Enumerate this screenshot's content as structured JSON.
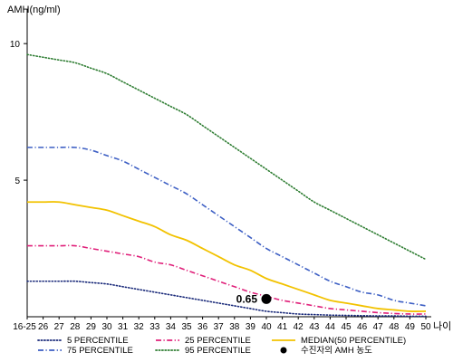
{
  "chart_data": {
    "type": "line",
    "ylabel": "AMH(ng/ml)",
    "xlabel": "나이",
    "ylim": [
      0,
      11
    ],
    "y_ticks": [
      5,
      10
    ],
    "x_ticks": [
      "16-25",
      "26",
      "27",
      "28",
      "29",
      "30",
      "31",
      "32",
      "33",
      "34",
      "35",
      "36",
      "37",
      "38",
      "39",
      "40",
      "41",
      "42",
      "43",
      "44",
      "45",
      "46",
      "47",
      "48",
      "49",
      "50"
    ],
    "grid": false,
    "legend_position": "bottom",
    "series": [
      {
        "name": "95 PERCENTILE",
        "color": "#2e7d32",
        "dash": "dotted",
        "x": [
          25,
          26,
          27,
          28,
          29,
          30,
          31,
          32,
          33,
          34,
          35,
          36,
          37,
          38,
          39,
          40,
          41,
          42,
          43,
          44,
          45,
          46,
          47,
          48,
          49,
          50
        ],
        "values": [
          9.6,
          9.5,
          9.4,
          9.3,
          9.1,
          8.9,
          8.6,
          8.3,
          8.0,
          7.7,
          7.4,
          7.0,
          6.6,
          6.2,
          5.8,
          5.4,
          5.0,
          4.6,
          4.2,
          3.9,
          3.6,
          3.3,
          3.0,
          2.7,
          2.4,
          2.1
        ]
      },
      {
        "name": "75 PERCENTILE",
        "color": "#3d5fc4",
        "dash": "dashdot",
        "x": [
          25,
          26,
          27,
          28,
          29,
          30,
          31,
          32,
          33,
          34,
          35,
          36,
          37,
          38,
          39,
          40,
          41,
          42,
          43,
          44,
          45,
          46,
          47,
          48,
          49,
          50
        ],
        "values": [
          6.2,
          6.2,
          6.2,
          6.2,
          6.1,
          5.9,
          5.7,
          5.4,
          5.1,
          4.8,
          4.5,
          4.1,
          3.7,
          3.3,
          2.9,
          2.5,
          2.2,
          1.9,
          1.6,
          1.3,
          1.1,
          0.9,
          0.8,
          0.6,
          0.5,
          0.4
        ]
      },
      {
        "name": "MEDIAN(50 PERCENTILE)",
        "color": "#f2c200",
        "dash": "solid",
        "x": [
          25,
          26,
          27,
          28,
          29,
          30,
          31,
          32,
          33,
          34,
          35,
          36,
          37,
          38,
          39,
          40,
          41,
          42,
          43,
          44,
          45,
          46,
          47,
          48,
          49,
          50
        ],
        "values": [
          4.2,
          4.2,
          4.2,
          4.1,
          4.0,
          3.9,
          3.7,
          3.5,
          3.3,
          3.0,
          2.8,
          2.5,
          2.2,
          1.9,
          1.7,
          1.4,
          1.2,
          1.0,
          0.8,
          0.6,
          0.5,
          0.4,
          0.3,
          0.25,
          0.2,
          0.2
        ]
      },
      {
        "name": "25 PERCENTILE",
        "color": "#e0207a",
        "dash": "dashdot",
        "x": [
          25,
          26,
          27,
          28,
          29,
          30,
          31,
          32,
          33,
          34,
          35,
          36,
          37,
          38,
          39,
          40,
          41,
          42,
          43,
          44,
          45,
          46,
          47,
          48,
          49,
          50
        ],
        "values": [
          2.6,
          2.6,
          2.6,
          2.6,
          2.5,
          2.4,
          2.3,
          2.2,
          2.0,
          1.9,
          1.7,
          1.5,
          1.3,
          1.1,
          0.9,
          0.75,
          0.6,
          0.5,
          0.4,
          0.3,
          0.25,
          0.2,
          0.15,
          0.12,
          0.1,
          0.1
        ]
      },
      {
        "name": "5 PERCENTILE",
        "color": "#1a2a7a",
        "dash": "dotted",
        "x": [
          25,
          26,
          27,
          28,
          29,
          30,
          31,
          32,
          33,
          34,
          35,
          36,
          37,
          38,
          39,
          40,
          41,
          42,
          43,
          44,
          45,
          46,
          47,
          48,
          49,
          50
        ],
        "values": [
          1.3,
          1.3,
          1.3,
          1.3,
          1.25,
          1.2,
          1.1,
          1.0,
          0.9,
          0.8,
          0.7,
          0.6,
          0.5,
          0.4,
          0.3,
          0.2,
          0.15,
          0.1,
          0.08,
          0.06,
          0.05,
          0.04,
          0.03,
          0.03,
          0.02,
          0.02
        ]
      }
    ],
    "point": {
      "label": "수진자의 AMH 농도",
      "x": 40,
      "y": 0.65,
      "value_label": "0.65"
    },
    "legend": [
      {
        "name": "5 PERCENTILE",
        "color": "#1a2a7a",
        "dash": "dotted"
      },
      {
        "name": "25 PERCENTILE",
        "color": "#e0207a",
        "dash": "dashdot"
      },
      {
        "name": "MEDIAN(50 PERCENTILE)",
        "color": "#f2c200",
        "dash": "solid"
      },
      {
        "name": "75 PERCENTILE",
        "color": "#3d5fc4",
        "dash": "dashdot"
      },
      {
        "name": "95 PERCENTILE",
        "color": "#2e7d32",
        "dash": "dotted"
      },
      {
        "name": "수진자의 AMH 농도",
        "color": "#000000",
        "dash": "marker"
      }
    ]
  }
}
